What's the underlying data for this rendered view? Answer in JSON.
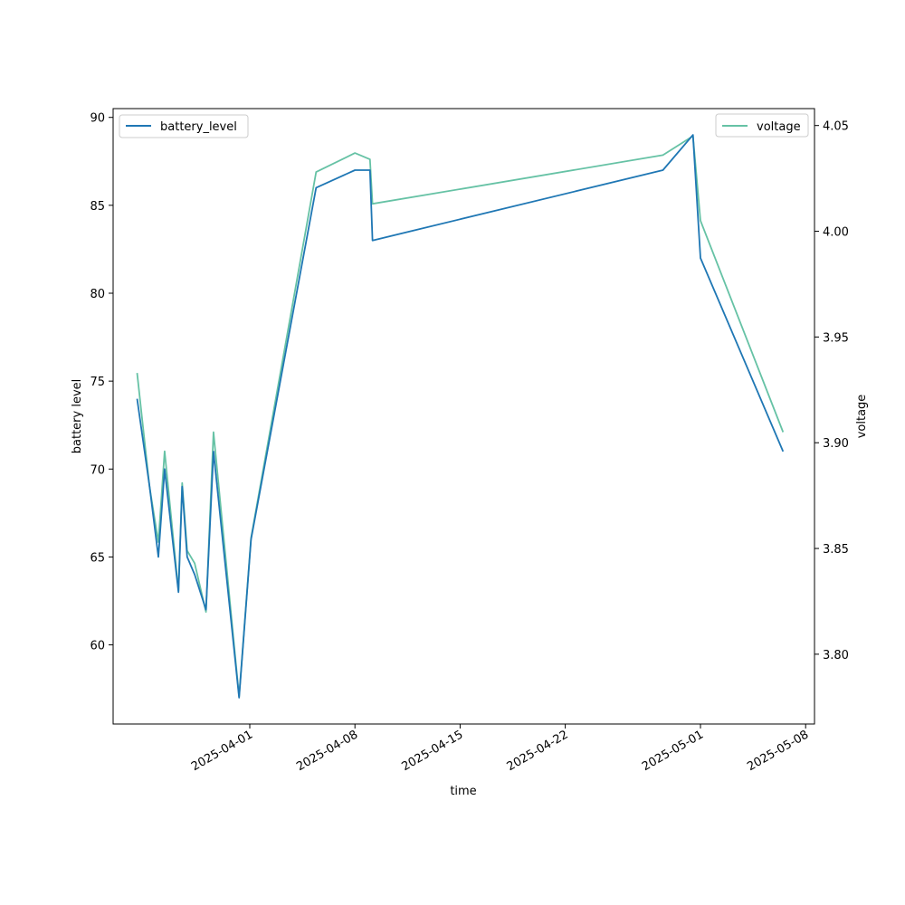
{
  "chart_data": {
    "type": "line",
    "xlabel": "time",
    "ylabel_left": "battery level",
    "ylabel_right": "voltage",
    "x_ticks": [
      "2025-04-01",
      "2025-04-08",
      "2025-04-15",
      "2025-04-22",
      "2025-05-01",
      "2025-05-08"
    ],
    "left_ylim": [
      55.5,
      90.5
    ],
    "left_yticks": [
      60,
      65,
      70,
      75,
      80,
      85,
      90
    ],
    "right_ylim": [
      3.767,
      4.058
    ],
    "right_yticks": [
      "3.80",
      "3.85",
      "3.90",
      "3.95",
      "4.00",
      "4.05"
    ],
    "grid": false,
    "series": [
      {
        "name": "battery_level",
        "axis": "left",
        "color": "#1f77b4",
        "legend_position": "upper-left",
        "points": [
          [
            "2025-03-24T12:00",
            74
          ],
          [
            "2025-03-25T08:00",
            69
          ],
          [
            "2025-03-25T22:00",
            65
          ],
          [
            "2025-03-26T08:00",
            70
          ],
          [
            "2025-03-27T06:00",
            63
          ],
          [
            "2025-03-27T12:00",
            69
          ],
          [
            "2025-03-27T20:00",
            65
          ],
          [
            "2025-03-28T08:00",
            64
          ],
          [
            "2025-03-29T02:00",
            62
          ],
          [
            "2025-03-29T14:00",
            71
          ],
          [
            "2025-03-31T07:00",
            57
          ],
          [
            "2025-04-01T02:00",
            66
          ],
          [
            "2025-04-05T10:00",
            86
          ],
          [
            "2025-04-08T00:00",
            87
          ],
          [
            "2025-04-09T00:00",
            87
          ],
          [
            "2025-04-09T04:00",
            83
          ],
          [
            "2025-04-28T12:00",
            87
          ],
          [
            "2025-04-30T12:00",
            89
          ],
          [
            "2025-05-01T00:00",
            82
          ],
          [
            "2025-05-06T12:00",
            71
          ]
        ]
      },
      {
        "name": "voltage",
        "axis": "right",
        "color": "#66c2a5",
        "legend_position": "upper-right",
        "points": [
          [
            "2025-03-24T12:00",
            3.933
          ],
          [
            "2025-03-25T08:00",
            3.879
          ],
          [
            "2025-03-25T22:00",
            3.853
          ],
          [
            "2025-03-26T08:00",
            3.896
          ],
          [
            "2025-03-27T06:00",
            3.83
          ],
          [
            "2025-03-27T12:00",
            3.881
          ],
          [
            "2025-03-27T20:00",
            3.849
          ],
          [
            "2025-03-28T08:00",
            3.843
          ],
          [
            "2025-03-29T02:00",
            3.82
          ],
          [
            "2025-03-29T14:00",
            3.905
          ],
          [
            "2025-03-31T07:00",
            3.78
          ],
          [
            "2025-04-01T02:00",
            3.855
          ],
          [
            "2025-04-05T10:00",
            4.028
          ],
          [
            "2025-04-08T00:00",
            4.037
          ],
          [
            "2025-04-09T00:00",
            4.034
          ],
          [
            "2025-04-09T04:00",
            4.013
          ],
          [
            "2025-04-28T12:00",
            4.036
          ],
          [
            "2025-04-30T12:00",
            4.045
          ],
          [
            "2025-05-01T00:00",
            4.005
          ],
          [
            "2025-05-06T12:00",
            3.905
          ]
        ]
      }
    ]
  }
}
